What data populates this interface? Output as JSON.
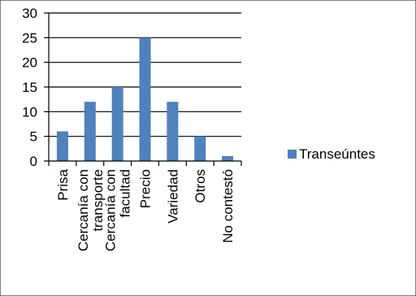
{
  "chart_data": {
    "type": "bar",
    "categories": [
      "Prisa",
      "Cercanía con transporte",
      "Cercanía con facultad",
      "Precio",
      "Variedad",
      "Otros",
      "No contestó"
    ],
    "series": [
      {
        "name": "Transeúntes",
        "values": [
          6,
          12,
          15,
          25,
          12,
          5,
          1
        ],
        "color": "#4f81bd"
      }
    ],
    "ylim": [
      0,
      30
    ],
    "yticks": [
      0,
      5,
      10,
      15,
      20,
      25,
      30
    ],
    "grid": true,
    "legend_position": "right"
  }
}
